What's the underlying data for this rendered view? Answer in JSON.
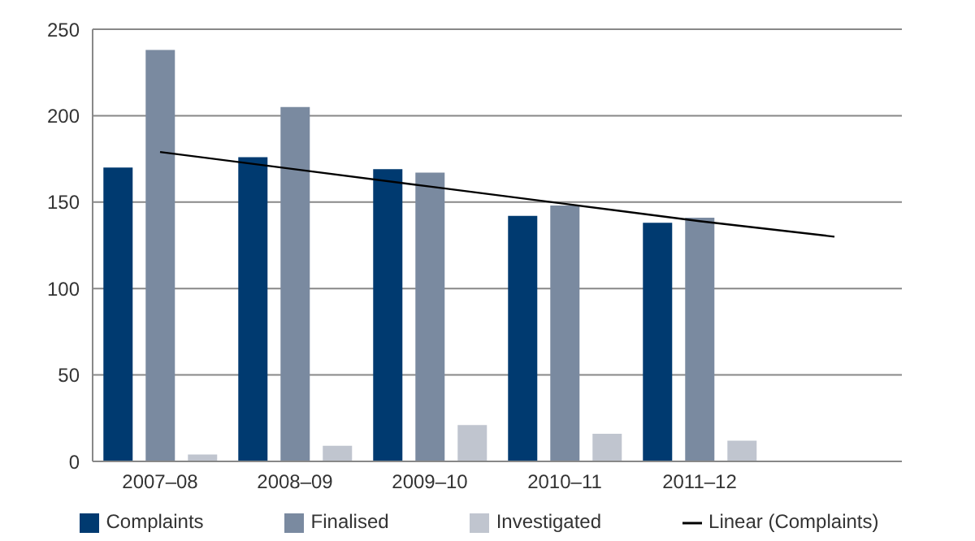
{
  "chart_data": {
    "type": "bar",
    "categories": [
      "2007–08",
      "2008–09",
      "2009–10",
      "2010–11",
      "2011–12",
      null
    ],
    "series": [
      {
        "name": "Complaints",
        "color": "#003a70",
        "values": [
          170,
          176,
          169,
          142,
          138,
          null
        ]
      },
      {
        "name": "Finalised",
        "color": "#7a8aa0",
        "values": [
          238,
          205,
          167,
          148,
          141,
          null
        ]
      },
      {
        "name": "Investigated",
        "color": "#c0c5cf",
        "values": [
          4,
          9,
          21,
          16,
          12,
          null
        ]
      },
      {
        "name": "Linear (Complaints)",
        "type": "line",
        "color": "#000000",
        "values": [
          179,
          169,
          159,
          149,
          139,
          130
        ]
      }
    ],
    "ylim": [
      0,
      250
    ],
    "yticks": [
      0,
      50,
      100,
      150,
      200,
      250
    ],
    "grid": "y",
    "legend": "bottom",
    "marker": "none",
    "line_style": "solid"
  }
}
